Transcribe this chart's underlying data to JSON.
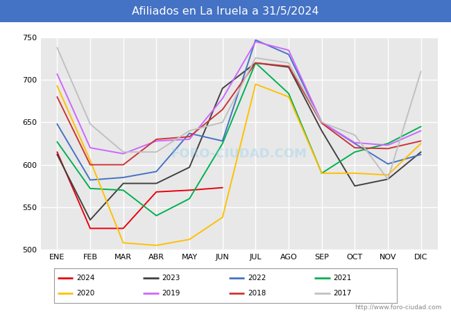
{
  "title": "Afiliados en La Iruela a 31/5/2024",
  "title_color": "#ffffff",
  "title_bg": "#4472c4",
  "ylim": [
    500,
    750
  ],
  "yticks": [
    500,
    550,
    600,
    650,
    700,
    750
  ],
  "months": [
    "ENE",
    "FEB",
    "MAR",
    "ABR",
    "MAY",
    "JUN",
    "JUL",
    "AGO",
    "SEP",
    "OCT",
    "NOV",
    "DIC"
  ],
  "series": {
    "2024": {
      "color": "#e8000d",
      "data": [
        615,
        525,
        525,
        568,
        570,
        573,
        null,
        null,
        null,
        null,
        null,
        null
      ]
    },
    "2023": {
      "color": "#404040",
      "data": [
        612,
        535,
        578,
        578,
        597,
        690,
        720,
        715,
        640,
        575,
        583,
        615
      ]
    },
    "2022": {
      "color": "#4472c4",
      "data": [
        648,
        582,
        585,
        592,
        637,
        628,
        747,
        730,
        650,
        625,
        601,
        612
      ]
    },
    "2021": {
      "color": "#00b050",
      "data": [
        627,
        572,
        570,
        540,
        560,
        625,
        720,
        684,
        590,
        615,
        625,
        645
      ]
    },
    "2020": {
      "color": "#ffc000",
      "data": [
        693,
        605,
        508,
        505,
        512,
        538,
        695,
        680,
        590,
        590,
        588,
        625
      ]
    },
    "2019": {
      "color": "#cc66ff",
      "data": [
        707,
        620,
        613,
        628,
        630,
        678,
        745,
        735,
        650,
        626,
        623,
        640
      ]
    },
    "2018": {
      "color": "#cc3333",
      "data": [
        680,
        600,
        600,
        630,
        633,
        665,
        720,
        716,
        649,
        620,
        619,
        628
      ]
    },
    "2017": {
      "color": "#c0c0c0",
      "data": [
        738,
        648,
        615,
        615,
        640,
        650,
        726,
        720,
        650,
        635,
        583,
        710
      ]
    }
  },
  "legend_order": [
    "2024",
    "2023",
    "2022",
    "2021",
    "2020",
    "2019",
    "2018",
    "2017"
  ],
  "plot_bg": "#e8e8e8",
  "grid_color": "#ffffff",
  "footer_url": "http://www.foro-ciudad.com"
}
